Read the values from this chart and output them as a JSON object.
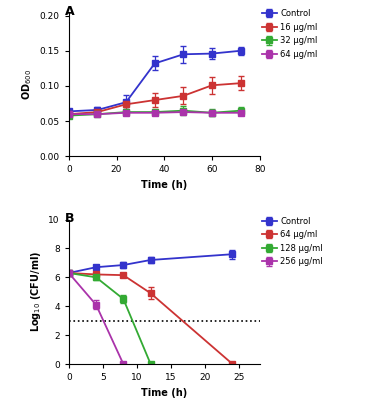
{
  "panel_A": {
    "title": "A",
    "xlabel": "Time (h)",
    "ylabel": "OD₆₀₀",
    "xlim": [
      0,
      80
    ],
    "ylim": [
      0.0,
      0.205
    ],
    "yticks": [
      0.0,
      0.05,
      0.1,
      0.15,
      0.2
    ],
    "xticks": [
      0,
      20,
      40,
      60,
      80
    ],
    "series": [
      {
        "label": "Control",
        "color": "#3333cc",
        "x": [
          0,
          12,
          24,
          36,
          48,
          60,
          72
        ],
        "y": [
          0.064,
          0.066,
          0.077,
          0.132,
          0.145,
          0.146,
          0.15
        ],
        "yerr": [
          0.003,
          0.004,
          0.01,
          0.01,
          0.012,
          0.008,
          0.006
        ]
      },
      {
        "label": "16 μg/ml",
        "color": "#cc3333",
        "x": [
          0,
          12,
          24,
          36,
          48,
          60,
          72
        ],
        "y": [
          0.06,
          0.063,
          0.074,
          0.08,
          0.086,
          0.101,
          0.104
        ],
        "yerr": [
          0.003,
          0.004,
          0.006,
          0.01,
          0.012,
          0.012,
          0.01
        ]
      },
      {
        "label": "32 μg/ml",
        "color": "#33aa33",
        "x": [
          0,
          12,
          24,
          36,
          48,
          60,
          72
        ],
        "y": [
          0.058,
          0.06,
          0.063,
          0.063,
          0.065,
          0.062,
          0.065
        ],
        "yerr": [
          0.002,
          0.003,
          0.003,
          0.003,
          0.006,
          0.005,
          0.005
        ]
      },
      {
        "label": "64 μg/ml",
        "color": "#aa33aa",
        "x": [
          0,
          12,
          24,
          36,
          48,
          60,
          72
        ],
        "y": [
          0.06,
          0.06,
          0.062,
          0.062,
          0.063,
          0.062,
          0.062
        ],
        "yerr": [
          0.002,
          0.002,
          0.002,
          0.002,
          0.003,
          0.003,
          0.003
        ]
      }
    ]
  },
  "panel_B": {
    "title": "B",
    "xlabel": "Time (h)",
    "ylabel": "Log₁₀ (CFU/ml)",
    "xlim": [
      0,
      28
    ],
    "ylim": [
      0,
      10
    ],
    "yticks": [
      0,
      2,
      4,
      6,
      8,
      10
    ],
    "xticks": [
      0,
      5,
      10,
      15,
      20,
      25
    ],
    "dotted_line_y": 3.0,
    "series": [
      {
        "label": "Control",
        "color": "#3333cc",
        "x": [
          0,
          4,
          8,
          12,
          24
        ],
        "y": [
          6.3,
          6.7,
          6.85,
          7.2,
          7.6
        ],
        "yerr": [
          0.1,
          0.15,
          0.2,
          0.2,
          0.3
        ]
      },
      {
        "label": "64 μg/ml",
        "color": "#cc3333",
        "x": [
          0,
          4,
          8,
          12,
          24
        ],
        "y": [
          6.3,
          6.2,
          6.15,
          4.9,
          0.0
        ],
        "yerr": [
          0.1,
          0.15,
          0.15,
          0.4,
          0.05
        ]
      },
      {
        "label": "128 μg/ml",
        "color": "#33aa33",
        "x": [
          0,
          4,
          8,
          12
        ],
        "y": [
          6.3,
          6.0,
          4.5,
          0.0
        ],
        "yerr": [
          0.1,
          0.2,
          0.3,
          0.05
        ]
      },
      {
        "label": "256 μg/ml",
        "color": "#aa33aa",
        "x": [
          0,
          4,
          8
        ],
        "y": [
          6.3,
          4.1,
          0.0
        ],
        "yerr": [
          0.1,
          0.3,
          0.05
        ]
      }
    ]
  },
  "bg_color": "#ffffff",
  "marker": "s",
  "markersize": 4,
  "linewidth": 1.3,
  "elinewidth": 0.9,
  "capsize": 2.5,
  "label_fontsize": 7,
  "tick_fontsize": 6.5,
  "legend_fontsize": 6,
  "panel_label_fontsize": 9
}
